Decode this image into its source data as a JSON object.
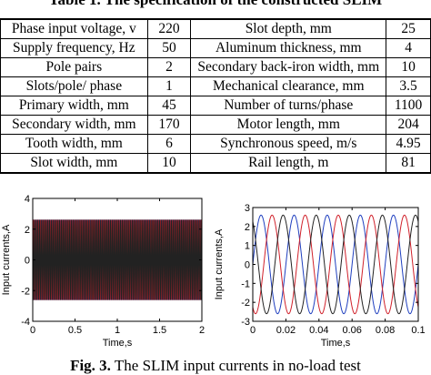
{
  "table_caption": "Table 1. The specification of the constructed SLIM",
  "spec_rows": [
    [
      "Phase input voltage, v",
      "220",
      "Slot depth, mm",
      "25"
    ],
    [
      "Supply frequency, Hz",
      "50",
      "Aluminum thickness, mm",
      "4"
    ],
    [
      "Pole pairs",
      "2",
      "Secondary back-iron width, mm",
      "10"
    ],
    [
      "Slots/pole/ phase",
      "1",
      "Mechanical clearance, mm",
      "3.5"
    ],
    [
      "Primary width, mm",
      "45",
      "Number of turns/phase",
      "1100"
    ],
    [
      "Secondary width, mm",
      "170",
      "Motor length, mm",
      "204"
    ],
    [
      "Tooth width, mm",
      "6",
      "Synchronous speed, m/s",
      "4.95"
    ],
    [
      "Slot width, mm",
      "10",
      "Rail length, m",
      "81"
    ]
  ],
  "figure_caption": {
    "label": "Fig. 3.",
    "text": "The SLIM input currents in no-load test"
  },
  "chart_data": [
    {
      "type": "line",
      "xlabel": "Time,s",
      "ylabel": "Input currents,A",
      "xlim": [
        0,
        2
      ],
      "ylim": [
        -4,
        4
      ],
      "x_ticks": [
        "0",
        "0.5",
        "1",
        "1.5",
        "2"
      ],
      "y_ticks": [
        "-4",
        "-2",
        "0",
        "2",
        "4"
      ],
      "grid": false,
      "frequency_hz": 50,
      "series": [
        {
          "amplitude": 2.6,
          "phase_deg": 0,
          "color": "#1f3fbf"
        },
        {
          "amplitude": 2.6,
          "phase_deg": -120,
          "color": "#d0202a"
        },
        {
          "amplitude": 2.6,
          "phase_deg": 120,
          "color": "#222222"
        }
      ]
    },
    {
      "type": "line",
      "xlabel": "Time,s",
      "ylabel": "Input currents,A",
      "xlim": [
        0,
        0.1
      ],
      "ylim": [
        -3,
        3
      ],
      "x_ticks": [
        "0",
        "0.02",
        "0.04",
        "0.06",
        "0.08",
        "0.1"
      ],
      "y_ticks": [
        "-3",
        "-2",
        "-1",
        "0",
        "1",
        "2",
        "3"
      ],
      "grid": false,
      "frequency_hz": 50,
      "series": [
        {
          "amplitude": 2.6,
          "phase_deg": 0,
          "color": "#1f3fbf"
        },
        {
          "amplitude": 2.6,
          "phase_deg": -120,
          "color": "#d0202a"
        },
        {
          "amplitude": 2.6,
          "phase_deg": 120,
          "color": "#222222"
        }
      ]
    }
  ]
}
